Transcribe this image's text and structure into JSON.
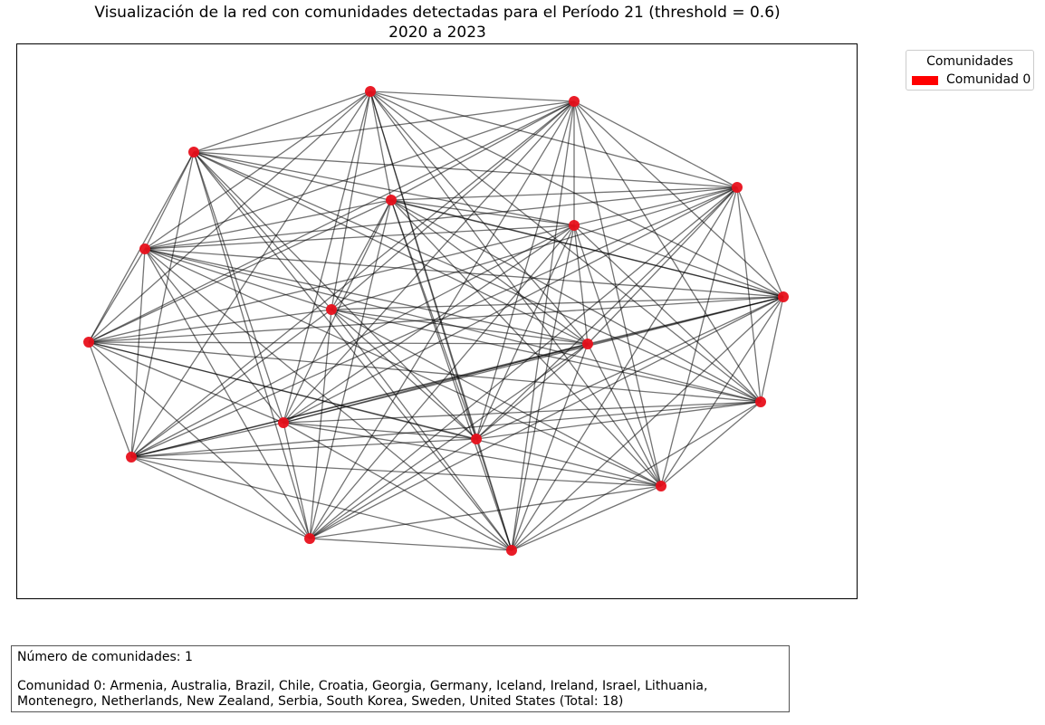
{
  "figure": {
    "title_line1": "Visualización de la red con comunidades detectadas para el Período 21 (threshold = 0.6)",
    "title_line2": "2020 a 2023"
  },
  "legend": {
    "title": "Comunidades",
    "entries": [
      {
        "label": "Comunidad 0",
        "color": "#ff0000"
      }
    ]
  },
  "graph": {
    "node_color": "#e8101b",
    "edge_color": "#000000",
    "node_count": 18
  },
  "summary": {
    "count_text": "Número de comunidades: 1",
    "community_text": "Comunidad 0: Armenia, Australia, Brazil, Chile, Croatia, Georgia, Germany, Iceland, Ireland, Israel, Lithuania, Montenegro, Netherlands, New Zealand, Serbia, South Korea, Sweden, United States (Total: 18)"
  }
}
